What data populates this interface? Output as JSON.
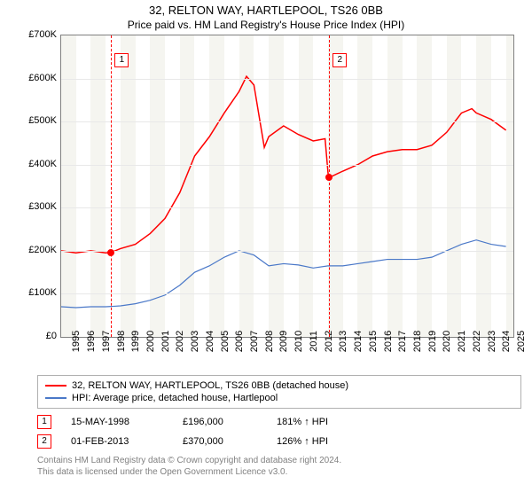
{
  "title": "32, RELTON WAY, HARTLEPOOL, TS26 0BB",
  "subtitle": "Price paid vs. HM Land Registry's House Price Index (HPI)",
  "chart": {
    "type": "line",
    "xlim": [
      1995,
      2025.5
    ],
    "ylim": [
      0,
      700000
    ],
    "ytick_step": 100000,
    "yprefix": "£",
    "ysuffix": "K",
    "years": [
      1995,
      1996,
      1997,
      1998,
      1999,
      2000,
      2001,
      2002,
      2003,
      2004,
      2005,
      2006,
      2007,
      2008,
      2009,
      2010,
      2011,
      2012,
      2013,
      2014,
      2015,
      2016,
      2017,
      2018,
      2019,
      2020,
      2021,
      2022,
      2023,
      2024,
      2025
    ],
    "band_color_even": "#ffffff",
    "band_color_odd": "#f5f5f0",
    "grid_color": "#e8e8e8",
    "border_color": "#808080",
    "background": "#ffffff",
    "label_fontsize": 11,
    "series": [
      {
        "name": "32, RELTON WAY, HARTLEPOOL, TS26 0BB (detached house)",
        "color": "#ff0000",
        "width": 1.5,
        "data": [
          [
            1995,
            200000
          ],
          [
            1996,
            195000
          ],
          [
            1997,
            200000
          ],
          [
            1998,
            195000
          ],
          [
            1998.37,
            196000
          ],
          [
            1999,
            205000
          ],
          [
            2000,
            215000
          ],
          [
            2001,
            240000
          ],
          [
            2002,
            275000
          ],
          [
            2003,
            335000
          ],
          [
            2004,
            420000
          ],
          [
            2005,
            465000
          ],
          [
            2006,
            520000
          ],
          [
            2007,
            570000
          ],
          [
            2007.5,
            605000
          ],
          [
            2008,
            585000
          ],
          [
            2008.7,
            440000
          ],
          [
            2009,
            465000
          ],
          [
            2010,
            490000
          ],
          [
            2011,
            470000
          ],
          [
            2012,
            455000
          ],
          [
            2012.8,
            460000
          ],
          [
            2013,
            380000
          ],
          [
            2013.08,
            370000
          ],
          [
            2014,
            385000
          ],
          [
            2015,
            400000
          ],
          [
            2016,
            420000
          ],
          [
            2017,
            430000
          ],
          [
            2018,
            435000
          ],
          [
            2019,
            435000
          ],
          [
            2020,
            445000
          ],
          [
            2021,
            475000
          ],
          [
            2022,
            520000
          ],
          [
            2022.7,
            530000
          ],
          [
            2023,
            520000
          ],
          [
            2024,
            505000
          ],
          [
            2025,
            480000
          ]
        ]
      },
      {
        "name": "HPI: Average price, detached house, Hartlepool",
        "color": "#4a78c8",
        "width": 1.2,
        "data": [
          [
            1995,
            70000
          ],
          [
            1996,
            68000
          ],
          [
            1997,
            70000
          ],
          [
            1998,
            70000
          ],
          [
            1999,
            72000
          ],
          [
            2000,
            77000
          ],
          [
            2001,
            85000
          ],
          [
            2002,
            97000
          ],
          [
            2003,
            120000
          ],
          [
            2004,
            150000
          ],
          [
            2005,
            165000
          ],
          [
            2006,
            185000
          ],
          [
            2007,
            200000
          ],
          [
            2008,
            190000
          ],
          [
            2009,
            165000
          ],
          [
            2010,
            170000
          ],
          [
            2011,
            167000
          ],
          [
            2012,
            160000
          ],
          [
            2013,
            165000
          ],
          [
            2014,
            165000
          ],
          [
            2015,
            170000
          ],
          [
            2016,
            175000
          ],
          [
            2017,
            180000
          ],
          [
            2018,
            180000
          ],
          [
            2019,
            180000
          ],
          [
            2020,
            185000
          ],
          [
            2021,
            200000
          ],
          [
            2022,
            215000
          ],
          [
            2023,
            225000
          ],
          [
            2024,
            215000
          ],
          [
            2025,
            210000
          ]
        ]
      }
    ],
    "markers": [
      {
        "idx": "1",
        "x": 1998.37,
        "y": 196000,
        "box_y": 20
      },
      {
        "idx": "2",
        "x": 2013.08,
        "y": 370000,
        "box_y": 20
      }
    ]
  },
  "legend": [
    {
      "color": "#ff0000",
      "label": "32, RELTON WAY, HARTLEPOOL, TS26 0BB (detached house)"
    },
    {
      "color": "#4a78c8",
      "label": "HPI: Average price, detached house, Hartlepool"
    }
  ],
  "sales": [
    {
      "idx": "1",
      "date": "15-MAY-1998",
      "price": "£196,000",
      "hpi": "181% ↑ HPI"
    },
    {
      "idx": "2",
      "date": "01-FEB-2013",
      "price": "£370,000",
      "hpi": "126% ↑ HPI"
    }
  ],
  "footer1": "Contains HM Land Registry data © Crown copyright and database right 2024.",
  "footer2": "This data is licensed under the Open Government Licence v3.0."
}
